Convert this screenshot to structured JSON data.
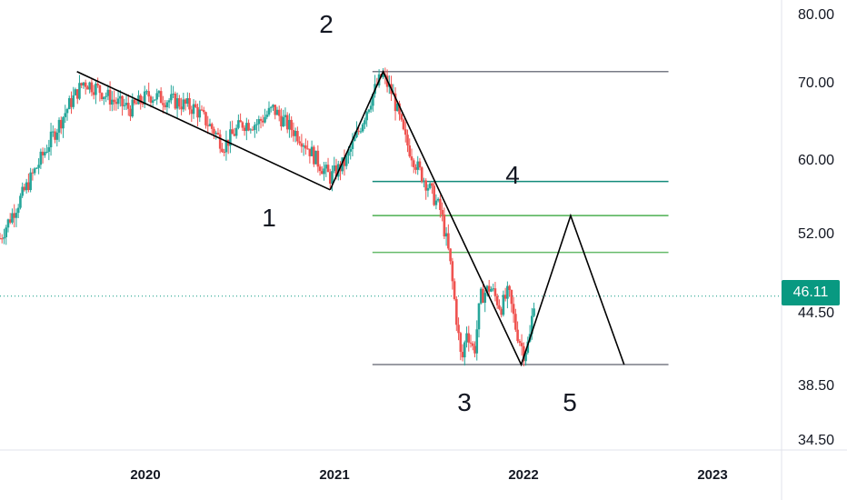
{
  "chart_data": {
    "type": "candlestick",
    "y_scale": "log",
    "ylim": [
      33.5,
      84
    ],
    "xlim": [
      "2019-01-01",
      "2023-03-15"
    ],
    "y_ticks": [
      "80.00",
      "70.00",
      "60.00",
      "52.00",
      "44.50",
      "38.50",
      "34.50"
    ],
    "x_ticks": [
      "2020",
      "2021",
      "2022",
      "2023"
    ],
    "current_price": "46.11",
    "colors": {
      "up": "#26a69a",
      "down": "#ef5350",
      "last_price": "#089981"
    },
    "price_path": [
      [
        "2019-01-01",
        52
      ],
      [
        "2019-02-15",
        57
      ],
      [
        "2019-03-20",
        61
      ],
      [
        "2019-04-20",
        65
      ],
      [
        "2019-05-20",
        69
      ],
      [
        "2019-06-15",
        72
      ],
      [
        "2019-07-10",
        71
      ],
      [
        "2019-08-15",
        69
      ],
      [
        "2019-09-15",
        68
      ],
      [
        "2019-10-20",
        70
      ],
      [
        "2019-11-15",
        69.5
      ],
      [
        "2019-12-15",
        69
      ],
      [
        "2020-01-20",
        68
      ],
      [
        "2020-02-25",
        65
      ],
      [
        "2020-03-15",
        63
      ],
      [
        "2020-04-20",
        66
      ],
      [
        "2020-05-20",
        66
      ],
      [
        "2020-06-20",
        68
      ],
      [
        "2020-07-15",
        66
      ],
      [
        "2020-08-15",
        64
      ],
      [
        "2020-09-15",
        61
      ],
      [
        "2020-10-10",
        59
      ],
      [
        "2020-11-10",
        61
      ],
      [
        "2020-12-05",
        65
      ],
      [
        "2021-01-01",
        70
      ],
      [
        "2021-01-20",
        73
      ],
      [
        "2021-02-10",
        70
      ],
      [
        "2021-03-05",
        64
      ],
      [
        "2021-04-01",
        60
      ],
      [
        "2021-04-20",
        58
      ],
      [
        "2021-05-15",
        55
      ],
      [
        "2021-06-01",
        50
      ],
      [
        "2021-06-15",
        44
      ],
      [
        "2021-06-25",
        40
      ],
      [
        "2021-07-05",
        43
      ],
      [
        "2021-07-20",
        41
      ],
      [
        "2021-08-01",
        46
      ],
      [
        "2021-08-20",
        47
      ],
      [
        "2021-09-10",
        45
      ],
      [
        "2021-09-25",
        46.5
      ],
      [
        "2021-10-10",
        43
      ],
      [
        "2021-10-25",
        41
      ],
      [
        "2021-11-05",
        42
      ],
      [
        "2021-11-15",
        46.11
      ]
    ],
    "waves": [
      {
        "label": "1",
        "date": "2020-10-10",
        "price": 57.5
      },
      {
        "label": "2",
        "date": "2021-01-22",
        "price": 73.5
      },
      {
        "label": "3",
        "date": "2021-10-20",
        "price": 40
      },
      {
        "label": "4",
        "date": "2022-01-25",
        "price": 54.5
      },
      {
        "label": "5",
        "date": "2022-05-10",
        "price": 40
      }
    ],
    "trendline": [
      [
        "2019-06-01",
        73.5
      ],
      [
        "2020-10-10",
        57.5
      ]
    ],
    "horizontal_levels": [
      {
        "price": 73.5,
        "color": "#787b86",
        "from": "2021-01-01",
        "to": "2022-08-05"
      },
      {
        "price": 58.5,
        "color": "#138a7a",
        "from": "2021-01-01",
        "to": "2022-08-05"
      },
      {
        "price": 54.5,
        "color": "#4caf50",
        "from": "2021-01-01",
        "to": "2022-08-05"
      },
      {
        "price": 50.5,
        "color": "#66bb6a",
        "from": "2021-01-01",
        "to": "2022-08-05"
      },
      {
        "price": 40,
        "color": "#787b86",
        "from": "2021-01-01",
        "to": "2022-08-05"
      }
    ]
  }
}
